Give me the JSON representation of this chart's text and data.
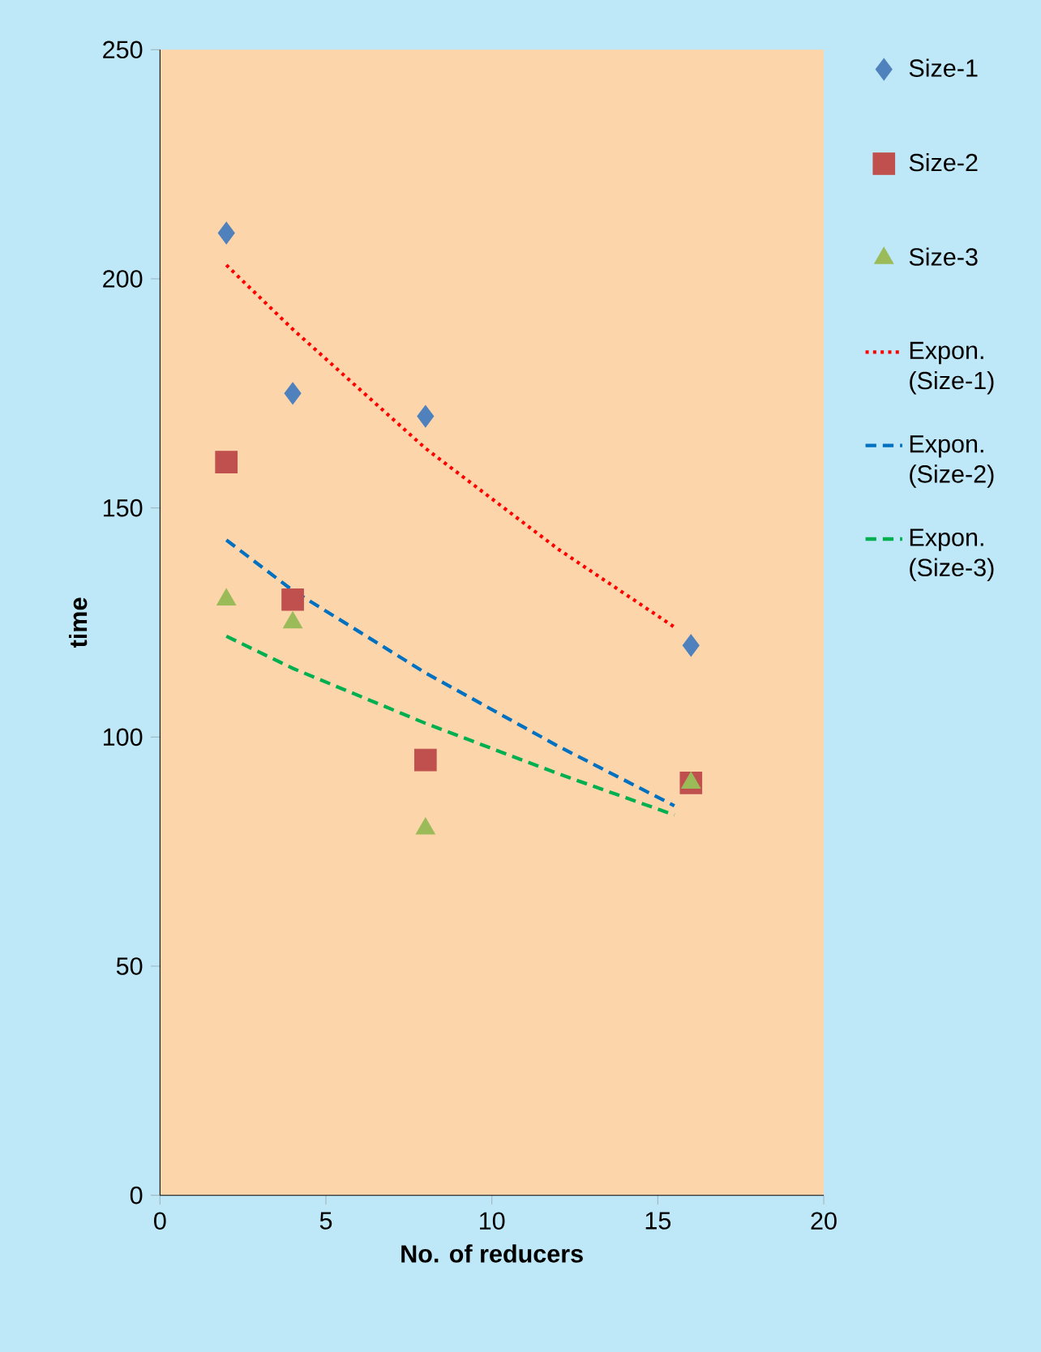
{
  "chart_data": {
    "type": "scatter",
    "xlabel": "No. of reducers",
    "ylabel": "time",
    "xlim": [
      0,
      20
    ],
    "ylim": [
      0,
      250
    ],
    "xticks": [
      0,
      5,
      10,
      15,
      20
    ],
    "yticks": [
      0,
      50,
      100,
      150,
      200,
      250
    ],
    "grid": false,
    "legend": "right",
    "series": [
      {
        "name": "Size-1",
        "marker": "diamond",
        "color": "#4f81bd",
        "x": [
          2,
          4,
          8,
          16
        ],
        "values": [
          210,
          175,
          170,
          120
        ]
      },
      {
        "name": "Size-2",
        "marker": "square",
        "color": "#c0504d",
        "x": [
          2,
          4,
          8,
          16
        ],
        "values": [
          160,
          130,
          95,
          90
        ]
      },
      {
        "name": "Size-3",
        "marker": "triangle",
        "color": "#9bbb59",
        "x": [
          2,
          4,
          8,
          16
        ],
        "values": [
          130,
          125,
          80,
          90
        ]
      },
      {
        "name": "Expon. (Size-1)",
        "type": "line",
        "line_style": "dotted",
        "color": "#ff0000",
        "x": [
          2,
          4,
          8,
          12,
          15.5
        ],
        "values": [
          203,
          189,
          163,
          141,
          124
        ]
      },
      {
        "name": "Expon. (Size-2)",
        "type": "line",
        "line_style": "dashed",
        "color": "#0070c0",
        "x": [
          2,
          4,
          8,
          12,
          15.5
        ],
        "values": [
          143,
          132,
          114,
          98,
          85
        ]
      },
      {
        "name": "Expon. (Size-3)",
        "type": "line",
        "line_style": "dashed",
        "color": "#00b050",
        "x": [
          2,
          4,
          8,
          12,
          15.5
        ],
        "values": [
          122,
          115,
          103,
          92,
          83
        ]
      }
    ]
  }
}
